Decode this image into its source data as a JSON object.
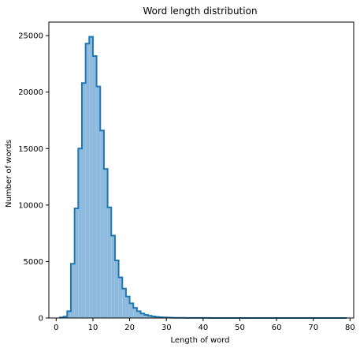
{
  "chart_data": {
    "type": "histogram",
    "title": "Word length distribution",
    "xlabel": "Length of word",
    "ylabel": "Number of words",
    "xlim": [
      -2,
      81
    ],
    "ylim": [
      0,
      26200
    ],
    "xticks": [
      0,
      10,
      20,
      30,
      40,
      50,
      60,
      70,
      80
    ],
    "yticks": [
      0,
      5000,
      10000,
      15000,
      20000,
      25000
    ],
    "grid": false,
    "legend": "none",
    "bin_start": 1,
    "bin_width": 1,
    "counts": [
      50,
      120,
      600,
      4800,
      9700,
      15000,
      20800,
      24300,
      24900,
      23200,
      20500,
      16600,
      13200,
      9800,
      7300,
      5100,
      3600,
      2600,
      1900,
      1300,
      900,
      600,
      400,
      280,
      200,
      140,
      100,
      70,
      50,
      40,
      30,
      22,
      18,
      14,
      11,
      9,
      8,
      7,
      6,
      5,
      5,
      4,
      4,
      3,
      3,
      3,
      2,
      2,
      2,
      2,
      2,
      2,
      1,
      1,
      1,
      1,
      1,
      1,
      1,
      1,
      1,
      1,
      1,
      1,
      1,
      1,
      1,
      1,
      1,
      1,
      1,
      1,
      1,
      1,
      1,
      1,
      1,
      1
    ],
    "colors": {
      "fill": "#8ebbdd",
      "edge": "#1f77b4",
      "axis": "#000000"
    }
  }
}
